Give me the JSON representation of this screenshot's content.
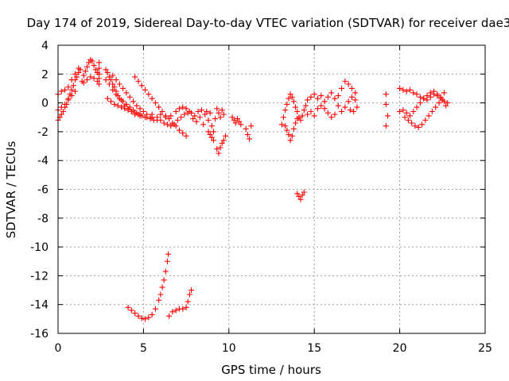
{
  "chart_data": {
    "type": "scatter",
    "title": "Day 174 of 2019, Sidereal Day-to-day VTEC variation (SDTVAR) for receiver dae3",
    "xlabel": "GPS time / hours",
    "ylabel": "SDTVAR / TECUs",
    "xlim": [
      0,
      25
    ],
    "ylim": [
      -16,
      4
    ],
    "xticks": [
      0,
      5,
      10,
      15,
      20,
      25
    ],
    "yticks": [
      4,
      2,
      0,
      -2,
      -4,
      -6,
      -8,
      -10,
      -12,
      -14,
      -16
    ],
    "grid": true,
    "marker": "+",
    "color": "#ff0000",
    "series": [
      {
        "name": "SDTVAR",
        "points": [
          [
            0.0,
            -1.2
          ],
          [
            0.1,
            -1.0
          ],
          [
            0.2,
            -0.8
          ],
          [
            0.3,
            -0.6
          ],
          [
            0.4,
            -0.3
          ],
          [
            0.5,
            -0.1
          ],
          [
            0.6,
            0.2
          ],
          [
            0.7,
            0.6
          ],
          [
            0.8,
            0.9
          ],
          [
            0.9,
            1.2
          ],
          [
            1.0,
            1.6
          ],
          [
            1.1,
            1.8
          ],
          [
            1.2,
            2.1
          ],
          [
            1.3,
            2.3
          ],
          [
            0.0,
            0.6
          ],
          [
            0.2,
            0.8
          ],
          [
            0.4,
            0.9
          ],
          [
            0.6,
            1.1
          ],
          [
            0.8,
            1.6
          ],
          [
            1.0,
            2.0
          ],
          [
            1.2,
            2.4
          ],
          [
            0.0,
            -0.5
          ],
          [
            0.2,
            -0.3
          ],
          [
            0.4,
            -0.1
          ],
          [
            0.6,
            0.3
          ],
          [
            0.8,
            0.5
          ],
          [
            1.0,
            0.8
          ],
          [
            1.4,
            1.5
          ],
          [
            1.5,
            1.9
          ],
          [
            1.6,
            2.2
          ],
          [
            1.7,
            2.5
          ],
          [
            1.8,
            2.8
          ],
          [
            1.9,
            3.0
          ],
          [
            2.0,
            2.9
          ],
          [
            2.1,
            2.6
          ],
          [
            2.2,
            2.3
          ],
          [
            2.3,
            2.1
          ],
          [
            2.4,
            2.0
          ],
          [
            1.5,
            1.4
          ],
          [
            1.7,
            1.6
          ],
          [
            1.9,
            1.8
          ],
          [
            2.1,
            1.7
          ],
          [
            2.3,
            1.5
          ],
          [
            2.4,
            1.3
          ],
          [
            2.4,
            2.8
          ],
          [
            2.4,
            2.4
          ],
          [
            2.4,
            1.7
          ],
          [
            2.8,
            2.3
          ],
          [
            2.9,
            2.1
          ],
          [
            3.0,
            1.8
          ],
          [
            3.1,
            1.6
          ],
          [
            3.2,
            1.3
          ],
          [
            3.3,
            1.1
          ],
          [
            3.4,
            0.8
          ],
          [
            3.5,
            0.5
          ],
          [
            3.7,
            0.2
          ],
          [
            3.9,
            -0.2
          ],
          [
            4.1,
            -0.4
          ],
          [
            4.3,
            -0.6
          ],
          [
            4.5,
            -0.8
          ],
          [
            4.8,
            -0.9
          ],
          [
            5.1,
            -1.0
          ],
          [
            5.4,
            -1.1
          ],
          [
            5.8,
            -1.2
          ],
          [
            2.8,
            1.6
          ],
          [
            3.0,
            1.3
          ],
          [
            3.2,
            0.9
          ],
          [
            3.4,
            0.6
          ],
          [
            3.6,
            0.3
          ],
          [
            3.8,
            0.1
          ],
          [
            4.0,
            -0.1
          ],
          [
            4.2,
            -0.3
          ],
          [
            4.4,
            -0.5
          ],
          [
            4.6,
            -0.7
          ],
          [
            4.8,
            -0.8
          ],
          [
            2.9,
            0.3
          ],
          [
            3.1,
            0.1
          ],
          [
            3.3,
            -0.1
          ],
          [
            3.5,
            -0.2
          ],
          [
            3.7,
            -0.3
          ],
          [
            3.9,
            -0.4
          ],
          [
            4.1,
            -0.5
          ],
          [
            4.3,
            -0.6
          ],
          [
            4.5,
            -0.7
          ],
          [
            4.7,
            -0.8
          ],
          [
            4.9,
            -0.9
          ],
          [
            5.2,
            -1.0
          ],
          [
            5.5,
            -1.0
          ],
          [
            3.2,
            1.9
          ],
          [
            3.4,
            1.6
          ],
          [
            3.6,
            1.3
          ],
          [
            3.8,
            1.0
          ],
          [
            4.0,
            0.7
          ],
          [
            4.2,
            0.4
          ],
          [
            4.4,
            0.1
          ],
          [
            4.6,
            -0.2
          ],
          [
            4.8,
            -0.4
          ],
          [
            5.0,
            -0.6
          ],
          [
            5.2,
            -0.8
          ],
          [
            5.4,
            -1.0
          ],
          [
            5.6,
            -1.2
          ],
          [
            4.5,
            1.8
          ],
          [
            4.7,
            1.5
          ],
          [
            4.9,
            1.2
          ],
          [
            5.1,
            0.9
          ],
          [
            5.3,
            0.6
          ],
          [
            5.5,
            0.3
          ],
          [
            5.7,
            0.0
          ],
          [
            5.9,
            -0.3
          ],
          [
            6.1,
            -0.6
          ],
          [
            6.3,
            -0.9
          ],
          [
            6.5,
            -1.1
          ],
          [
            6.7,
            -1.4
          ],
          [
            6.9,
            -1.6
          ],
          [
            7.1,
            -1.9
          ],
          [
            7.3,
            -2.1
          ],
          [
            7.5,
            -2.3
          ],
          [
            5.5,
            -0.8
          ],
          [
            5.8,
            -1.0
          ],
          [
            6.0,
            -1.2
          ],
          [
            6.2,
            -1.4
          ],
          [
            6.4,
            -1.5
          ],
          [
            6.6,
            -1.6
          ],
          [
            6.8,
            -1.5
          ],
          [
            7.0,
            -1.2
          ],
          [
            7.2,
            -1.0
          ],
          [
            7.4,
            -0.8
          ],
          [
            7.6,
            -0.7
          ],
          [
            7.8,
            -0.7
          ],
          [
            6.0,
            -0.8
          ],
          [
            6.3,
            -1.0
          ],
          [
            6.6,
            -0.9
          ],
          [
            6.9,
            -0.6
          ],
          [
            7.1,
            -0.4
          ],
          [
            7.3,
            -0.3
          ],
          [
            7.5,
            -0.4
          ],
          [
            7.7,
            -0.6
          ],
          [
            7.9,
            -1.1
          ],
          [
            8.0,
            -0.9
          ],
          [
            8.1,
            -1.3
          ],
          [
            8.2,
            -0.6
          ],
          [
            8.3,
            -1.0
          ],
          [
            8.4,
            -0.5
          ],
          [
            8.5,
            -1.5
          ],
          [
            8.6,
            -0.8
          ],
          [
            8.7,
            -0.6
          ],
          [
            8.8,
            -1.2
          ],
          [
            8.9,
            -0.7
          ],
          [
            9.0,
            -1.6
          ],
          [
            9.1,
            -2.0
          ],
          [
            9.2,
            -1.1
          ],
          [
            9.3,
            -0.4
          ],
          [
            9.4,
            -0.7
          ],
          [
            9.5,
            -1.0
          ],
          [
            9.6,
            -0.5
          ],
          [
            9.7,
            -0.8
          ],
          [
            8.8,
            -2.0
          ],
          [
            8.9,
            -2.2
          ],
          [
            9.0,
            -2.4
          ],
          [
            9.1,
            -2.6
          ],
          [
            9.3,
            -3.2
          ],
          [
            9.4,
            -3.5
          ],
          [
            9.5,
            -3.1
          ],
          [
            9.6,
            -2.8
          ],
          [
            9.7,
            -2.6
          ],
          [
            9.8,
            -2.3
          ],
          [
            10.2,
            -1.0
          ],
          [
            10.3,
            -1.2
          ],
          [
            10.4,
            -1.4
          ],
          [
            10.5,
            -1.1
          ],
          [
            10.6,
            -1.3
          ],
          [
            10.7,
            -1.5
          ],
          [
            11.0,
            -1.8
          ],
          [
            11.1,
            -2.2
          ],
          [
            11.2,
            -2.5
          ],
          [
            11.3,
            -1.6
          ],
          [
            13.1,
            -1.5
          ],
          [
            13.2,
            -1.0
          ],
          [
            13.3,
            -0.5
          ],
          [
            13.4,
            -0.1
          ],
          [
            13.5,
            0.3
          ],
          [
            13.6,
            0.6
          ],
          [
            13.7,
            0.4
          ],
          [
            13.8,
            0.1
          ],
          [
            13.9,
            -0.3
          ],
          [
            14.0,
            -0.6
          ],
          [
            14.1,
            -1.0
          ],
          [
            14.2,
            -1.2
          ],
          [
            14.3,
            -0.9
          ],
          [
            14.4,
            -0.5
          ],
          [
            14.5,
            -0.2
          ],
          [
            13.3,
            -1.6
          ],
          [
            13.4,
            -1.9
          ],
          [
            13.5,
            -2.2
          ],
          [
            13.6,
            -2.6
          ],
          [
            13.7,
            -2.3
          ],
          [
            13.8,
            -1.8
          ],
          [
            13.9,
            -1.4
          ],
          [
            14.0,
            -1.1
          ],
          [
            14.6,
            -0.8
          ],
          [
            14.8,
            -0.6
          ],
          [
            15.0,
            -0.9
          ],
          [
            15.2,
            -0.4
          ],
          [
            15.4,
            -0.2
          ],
          [
            15.6,
            0.1
          ],
          [
            15.8,
            0.4
          ],
          [
            16.0,
            0.7
          ],
          [
            16.2,
            0.3
          ],
          [
            16.4,
            -0.2
          ],
          [
            16.6,
            -0.6
          ],
          [
            16.8,
            -0.3
          ],
          [
            17.0,
            0.1
          ],
          [
            17.2,
            0.4
          ],
          [
            17.4,
            0.2
          ],
          [
            14.6,
            0.2
          ],
          [
            14.8,
            0.4
          ],
          [
            15.0,
            0.6
          ],
          [
            15.2,
            0.3
          ],
          [
            15.4,
            0.5
          ],
          [
            15.6,
            -0.4
          ],
          [
            15.8,
            -0.7
          ],
          [
            16.0,
            -1.0
          ],
          [
            16.2,
            -0.8
          ],
          [
            16.4,
            0.5
          ],
          [
            16.6,
            1.0
          ],
          [
            16.8,
            1.5
          ],
          [
            17.0,
            1.3
          ],
          [
            17.2,
            1.0
          ],
          [
            17.4,
            0.7
          ],
          [
            17.5,
            -0.3
          ],
          [
            17.3,
            -0.6
          ],
          [
            17.1,
            -0.5
          ],
          [
            14.0,
            -6.3
          ],
          [
            14.1,
            -6.5
          ],
          [
            14.2,
            -6.7
          ],
          [
            14.3,
            -6.4
          ],
          [
            14.4,
            -6.2
          ],
          [
            19.2,
            0.6
          ],
          [
            19.2,
            -0.1
          ],
          [
            19.2,
            -1.6
          ],
          [
            19.3,
            -0.9
          ],
          [
            20.0,
            1.0
          ],
          [
            20.2,
            0.9
          ],
          [
            20.4,
            0.8
          ],
          [
            20.6,
            0.9
          ],
          [
            20.8,
            0.7
          ],
          [
            21.0,
            0.6
          ],
          [
            21.2,
            0.4
          ],
          [
            21.4,
            0.3
          ],
          [
            21.6,
            0.2
          ],
          [
            21.8,
            0.4
          ],
          [
            22.0,
            0.6
          ],
          [
            22.2,
            0.5
          ],
          [
            22.4,
            0.3
          ],
          [
            22.6,
            0.1
          ],
          [
            22.8,
            0.0
          ],
          [
            20.0,
            -0.6
          ],
          [
            20.2,
            -0.5
          ],
          [
            20.4,
            -0.7
          ],
          [
            20.6,
            -0.9
          ],
          [
            20.8,
            -0.6
          ],
          [
            21.0,
            -0.3
          ],
          [
            21.2,
            0.0
          ],
          [
            21.4,
            0.3
          ],
          [
            21.6,
            0.5
          ],
          [
            21.8,
            0.7
          ],
          [
            22.0,
            0.8
          ],
          [
            22.2,
            0.6
          ],
          [
            22.4,
            0.4
          ],
          [
            22.6,
            0.7
          ],
          [
            20.3,
            -1.0
          ],
          [
            20.5,
            -1.2
          ],
          [
            20.7,
            -1.4
          ],
          [
            20.9,
            -1.6
          ],
          [
            21.1,
            -1.7
          ],
          [
            21.3,
            -1.5
          ],
          [
            21.5,
            -1.2
          ],
          [
            21.7,
            -0.9
          ],
          [
            21.9,
            -0.6
          ],
          [
            22.1,
            -0.3
          ],
          [
            22.3,
            0.0
          ],
          [
            22.5,
            0.2
          ],
          [
            22.7,
            -0.2
          ],
          [
            4.1,
            -14.2
          ],
          [
            4.3,
            -14.4
          ],
          [
            4.5,
            -14.6
          ],
          [
            4.7,
            -14.8
          ],
          [
            4.9,
            -14.95
          ],
          [
            5.1,
            -15.0
          ],
          [
            5.3,
            -14.9
          ],
          [
            5.5,
            -14.7
          ],
          [
            5.7,
            -14.3
          ],
          [
            5.9,
            -13.7
          ],
          [
            6.0,
            -13.3
          ],
          [
            6.1,
            -12.8
          ],
          [
            6.2,
            -12.3
          ],
          [
            6.3,
            -11.7
          ],
          [
            6.4,
            -11.0
          ],
          [
            6.45,
            -10.5
          ],
          [
            6.5,
            -14.8
          ],
          [
            6.7,
            -14.5
          ],
          [
            6.9,
            -14.4
          ],
          [
            7.1,
            -14.3
          ],
          [
            7.3,
            -14.3
          ],
          [
            7.5,
            -14.2
          ],
          [
            7.6,
            -13.8
          ],
          [
            7.7,
            -13.3
          ],
          [
            7.8,
            -13.0
          ]
        ]
      }
    ]
  }
}
